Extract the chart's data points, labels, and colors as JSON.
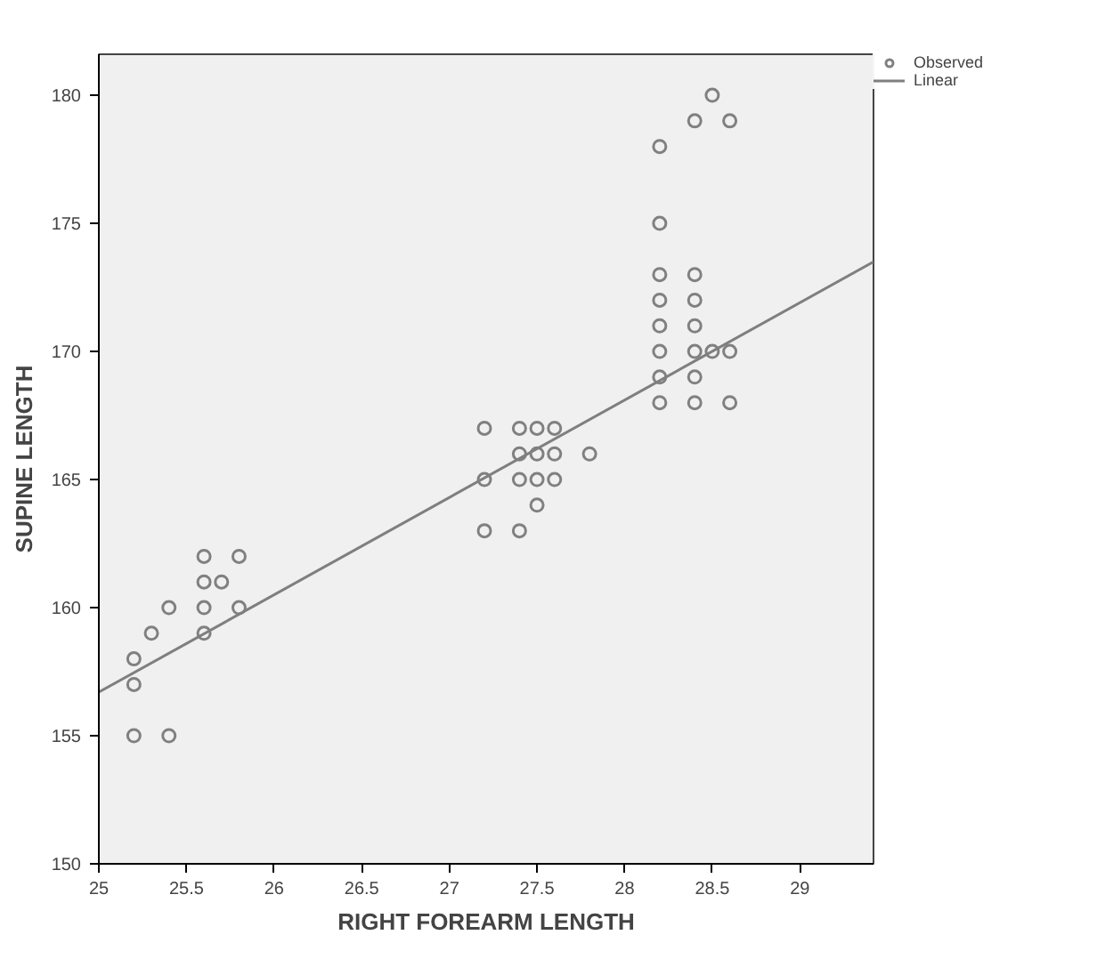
{
  "chart_data": {
    "type": "scatter",
    "xlabel": "RIGHT FOREARM LENGTH",
    "ylabel": "SUPINE LENGTH",
    "xlim": [
      25,
      29.42
    ],
    "ylim": [
      150,
      181.6
    ],
    "xticks": [
      25,
      25.5,
      26,
      26.5,
      27,
      27.5,
      28,
      28.5,
      29
    ],
    "yticks": [
      150,
      155,
      160,
      165,
      170,
      175,
      180
    ],
    "grid": false,
    "legend": "top right",
    "marker": "circle",
    "series": [
      {
        "name": "Observed",
        "color": "#808080",
        "x": [
          25.2,
          25.2,
          25.2,
          25.3,
          25.4,
          25.4,
          25.6,
          25.6,
          25.6,
          25.6,
          25.7,
          25.8,
          25.8,
          27.2,
          27.2,
          27.2,
          27.4,
          27.4,
          27.4,
          27.4,
          27.5,
          27.5,
          27.5,
          27.5,
          27.6,
          27.6,
          27.6,
          27.8,
          28.2,
          28.2,
          28.2,
          28.2,
          28.2,
          28.2,
          28.2,
          28.2,
          28.4,
          28.4,
          28.4,
          28.4,
          28.4,
          28.4,
          28.4,
          28.5,
          28.5,
          28.6,
          28.6,
          28.6
        ],
        "values": [
          158,
          157,
          155,
          159,
          160,
          155,
          162,
          161,
          160,
          159,
          161,
          162,
          160,
          167,
          165,
          163,
          167,
          166,
          165,
          163,
          167,
          166,
          165,
          164,
          167,
          166,
          165,
          166,
          178,
          175,
          173,
          172,
          171,
          170,
          169,
          168,
          179,
          173,
          172,
          171,
          170,
          169,
          168,
          180,
          170,
          179,
          170,
          168
        ]
      },
      {
        "name": "Linear",
        "type": "line",
        "marker": "none",
        "color": "#7f7f7f",
        "x": [
          25,
          29.42
        ],
        "values": [
          156.7,
          173.5
        ]
      }
    ]
  }
}
